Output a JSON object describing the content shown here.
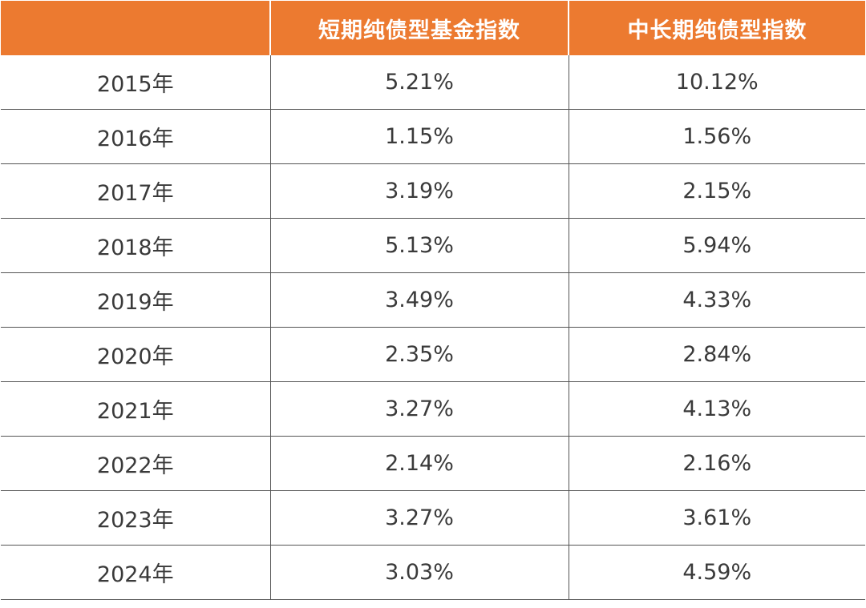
{
  "chart_data": {
    "type": "table",
    "columns": [
      "",
      "短期纯债型基金指数",
      "中长期纯债型指数"
    ],
    "rows": [
      [
        "2015年",
        "5.21%",
        "10.12%"
      ],
      [
        "2016年",
        "1.15%",
        "1.56%"
      ],
      [
        "2017年",
        "3.19%",
        "2.15%"
      ],
      [
        "2018年",
        "5.13%",
        "5.94%"
      ],
      [
        "2019年",
        "3.49%",
        "4.33%"
      ],
      [
        "2020年",
        "2.35%",
        "2.84%"
      ],
      [
        "2021年",
        "3.27%",
        "4.13%"
      ],
      [
        "2022年",
        "2.14%",
        "2.16%"
      ],
      [
        "2023年",
        "3.27%",
        "3.61%"
      ],
      [
        "2024年",
        "3.03%",
        "4.59%"
      ]
    ],
    "series": [
      {
        "name": "短期纯债型基金指数",
        "values": [
          5.21,
          1.15,
          3.19,
          5.13,
          3.49,
          2.35,
          3.27,
          2.14,
          3.27,
          3.03
        ]
      },
      {
        "name": "中长期纯债型指数",
        "values": [
          10.12,
          1.56,
          2.15,
          5.94,
          4.33,
          2.84,
          4.13,
          2.16,
          3.61,
          4.59
        ]
      }
    ],
    "categories": [
      "2015年",
      "2016年",
      "2017年",
      "2018年",
      "2019年",
      "2020年",
      "2021年",
      "2022年",
      "2023年",
      "2024年"
    ]
  },
  "colors": {
    "header_bg": "#ec7a30",
    "header_text": "#ffffff",
    "body_text": "#3a3a3a",
    "grid_line": "#555555"
  }
}
